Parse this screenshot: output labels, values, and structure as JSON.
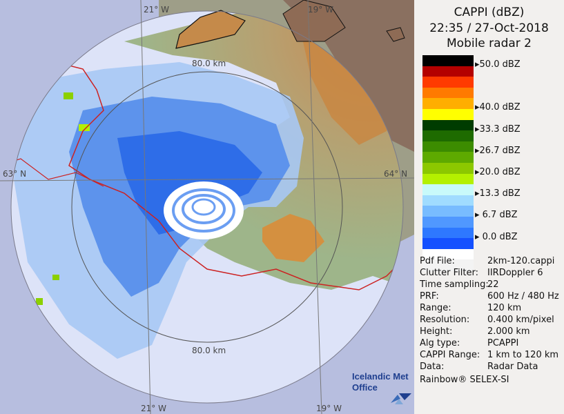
{
  "header": {
    "title": "CAPPI (dBZ)",
    "datetime": "22:35 / 27-Oct-2018",
    "radar": "Mobile radar 2"
  },
  "legend": {
    "colors": [
      "#000000",
      "#b40000",
      "#ff3a00",
      "#ff7a00",
      "#ffae00",
      "#ffff00",
      "#003c00",
      "#1e6b00",
      "#3c8c00",
      "#5eaa00",
      "#8cc800",
      "#b4f000",
      "#c8fafa",
      "#a0dcff",
      "#78bcff",
      "#5098ff",
      "#2e78ff",
      "#1450ff",
      "#ffffff",
      "#f3f3f3"
    ],
    "labels": [
      {
        "text": "50.0 dBZ",
        "row": 0
      },
      {
        "text": "40.0 dBZ",
        "row": 4
      },
      {
        "text": "33.3 dBZ",
        "row": 6
      },
      {
        "text": "26.7 dBZ",
        "row": 8
      },
      {
        "text": "20.0 dBZ",
        "row": 10
      },
      {
        "text": "13.3 dBZ",
        "row": 12
      },
      {
        "text": " 6.7 dBZ",
        "row": 14
      },
      {
        "text": " 0.0 dBZ",
        "row": 16
      }
    ]
  },
  "info": [
    {
      "key": "Pdf File:",
      "value": "2km-120.cappi"
    },
    {
      "key": "Clutter Filter:",
      "value": "IIRDoppler 6"
    },
    {
      "key": "Time sampling:",
      "value": "22"
    },
    {
      "key": "PRF:",
      "value": "600 Hz / 480 Hz"
    },
    {
      "key": "Range:",
      "value": "120 km"
    },
    {
      "key": "Resolution:",
      "value": "0.400 km/pixel"
    },
    {
      "key": "Height:",
      "value": "2.000 km"
    },
    {
      "key": "Alg type:",
      "value": "PCAPPI"
    },
    {
      "key": "CAPPI Range:",
      "value": "1 km to 120 km"
    },
    {
      "key": "Data:",
      "value": "Radar Data"
    }
  ],
  "footer": "Rainbow® SELEX-SI",
  "map": {
    "lon_21w": "21° W",
    "lon_19w": "19° W",
    "lat_64n": "64° N",
    "lat_63n": "63° N",
    "ring_label": "80.0 km"
  },
  "logo": {
    "line1": "Icelandic Met",
    "line2": "Office"
  }
}
